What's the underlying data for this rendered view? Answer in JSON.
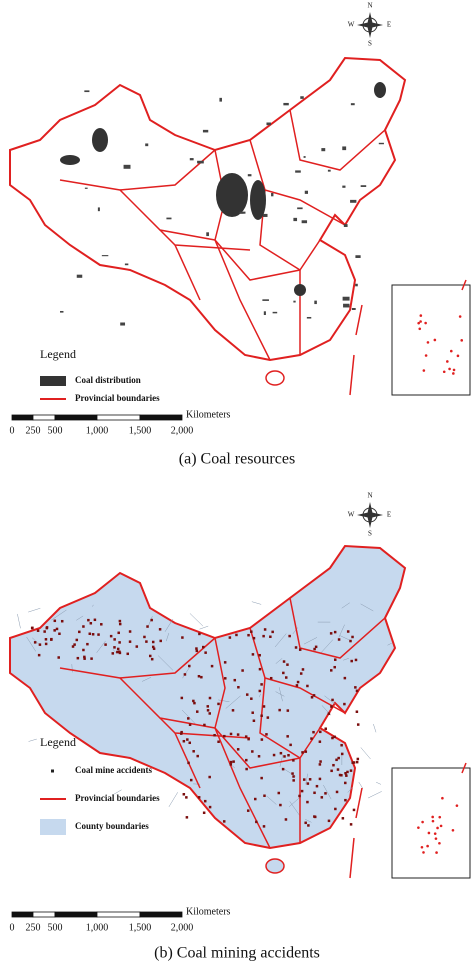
{
  "panels": [
    {
      "compass": {
        "n": "N",
        "s": "S",
        "e": "E",
        "w": "W"
      },
      "legend": {
        "title": "Legend",
        "items": [
          "Coal distribution",
          "Provincial boundaries"
        ]
      },
      "scale_bar": {
        "unit": "Kilometers",
        "labels": [
          "0",
          "250",
          "500",
          "1,000",
          "1,500",
          "2,000"
        ]
      },
      "caption": "(a) Coal resources"
    },
    {
      "compass": {
        "n": "N",
        "s": "S",
        "e": "E",
        "w": "W"
      },
      "legend": {
        "title": "Legend",
        "items": [
          "Coal mine accidents",
          "Provincial boundaries",
          "County boundaries"
        ]
      },
      "scale_bar": {
        "unit": "Kilometers",
        "labels": [
          "0",
          "250",
          "500",
          "1,000",
          "1,500",
          "2,000"
        ]
      },
      "caption": "(b) Coal mining accidents"
    }
  ]
}
